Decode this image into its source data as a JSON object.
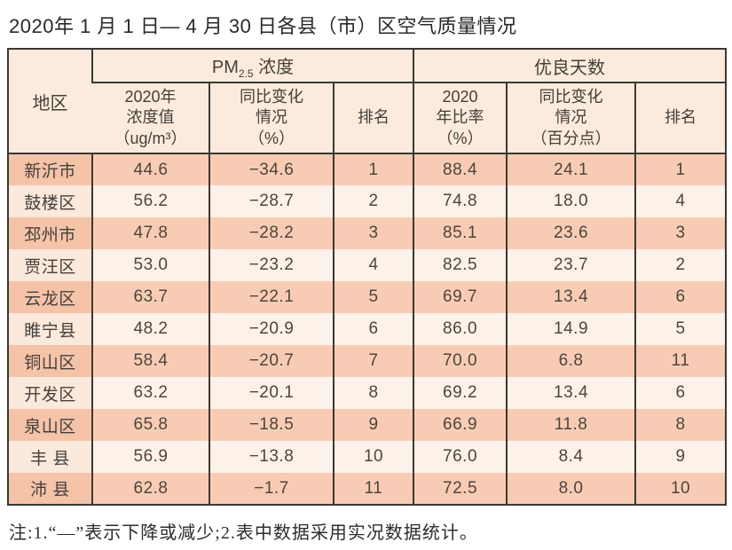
{
  "page": {
    "title": "2020年 1 月 1 日— 4 月 30 日各县（市）区空气质量情况",
    "footnote": "注:1.“—”表示下降或减少;2.表中数据采用实况数据统计。"
  },
  "table": {
    "region_header": "地区",
    "pm_group": {
      "prefix": "PM",
      "subscript": "2.5",
      "suffix": " 浓度"
    },
    "good_group_label": "优良天数",
    "subheaders": {
      "pm_value": "2020年\n浓度值\n（ug/m³）",
      "pm_change": "同比变化\n情况\n（%）",
      "pm_rank": "排名",
      "good_ratio": "2020\n年比率\n（%）",
      "good_change": "同比变化\n情况\n（百分点）",
      "good_rank": "排名"
    },
    "rows": [
      {
        "region": "新沂市",
        "pm_value": "44.6",
        "pm_change": "−34.6",
        "pm_rank": "1",
        "good_ratio": "88.4",
        "good_change": "24.1",
        "good_rank": "1"
      },
      {
        "region": "鼓楼区",
        "pm_value": "56.2",
        "pm_change": "−28.7",
        "pm_rank": "2",
        "good_ratio": "74.8",
        "good_change": "18.0",
        "good_rank": "4"
      },
      {
        "region": "邳州市",
        "pm_value": "47.8",
        "pm_change": "−28.2",
        "pm_rank": "3",
        "good_ratio": "85.1",
        "good_change": "23.6",
        "good_rank": "3"
      },
      {
        "region": "贾汪区",
        "pm_value": "53.0",
        "pm_change": "−23.2",
        "pm_rank": "4",
        "good_ratio": "82.5",
        "good_change": "23.7",
        "good_rank": "2"
      },
      {
        "region": "云龙区",
        "pm_value": "63.7",
        "pm_change": "−22.1",
        "pm_rank": "5",
        "good_ratio": "69.7",
        "good_change": "13.4",
        "good_rank": "6"
      },
      {
        "region": "睢宁县",
        "pm_value": "48.2",
        "pm_change": "−20.9",
        "pm_rank": "6",
        "good_ratio": "86.0",
        "good_change": "14.9",
        "good_rank": "5"
      },
      {
        "region": "铜山区",
        "pm_value": "58.4",
        "pm_change": "−20.7",
        "pm_rank": "7",
        "good_ratio": "70.0",
        "good_change": "6.8",
        "good_rank": "11"
      },
      {
        "region": "开发区",
        "pm_value": "63.2",
        "pm_change": "−20.1",
        "pm_rank": "8",
        "good_ratio": "69.2",
        "good_change": "13.4",
        "good_rank": "6"
      },
      {
        "region": "泉山区",
        "pm_value": "65.8",
        "pm_change": "−18.5",
        "pm_rank": "9",
        "good_ratio": "66.9",
        "good_change": "11.8",
        "good_rank": "8"
      },
      {
        "region": "丰 县",
        "pm_value": "56.9",
        "pm_change": "−13.8",
        "pm_rank": "10",
        "good_ratio": "76.0",
        "good_change": "8.4",
        "good_rank": "9"
      },
      {
        "region": "沛 县",
        "pm_value": "62.8",
        "pm_change": "−1.7",
        "pm_rank": "11",
        "good_ratio": "72.5",
        "good_change": "8.0",
        "good_rank": "10"
      }
    ]
  },
  "colors": {
    "row_odd": "#f8ccb4",
    "row_even": "#fdf2e9",
    "header_bg": "#fcebdc",
    "border": "#3c3734"
  }
}
